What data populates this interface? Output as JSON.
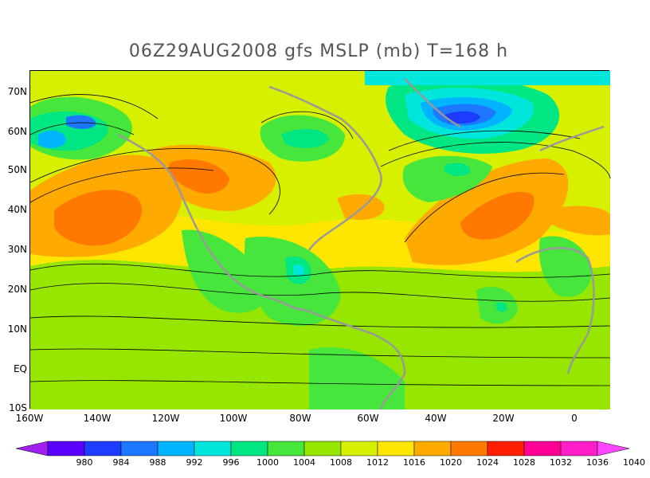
{
  "title": "06Z29AUG2008 gfs MSLP (mb) T=168 h",
  "map": {
    "lon_range": [
      -160,
      10
    ],
    "lat_range": [
      -10,
      75
    ],
    "y_ticks": [
      "70N",
      "60N",
      "50N",
      "40N",
      "30N",
      "20N",
      "10N",
      "EQ",
      "10S"
    ],
    "x_ticks": [
      "160W",
      "140W",
      "120W",
      "100W",
      "80W",
      "60W",
      "40W",
      "20W",
      "0"
    ]
  },
  "colorbar": {
    "labels": [
      "980",
      "984",
      "988",
      "992",
      "996",
      "1000",
      "1004",
      "1008",
      "1012",
      "1016",
      "1020",
      "1024",
      "1028",
      "1032",
      "1036",
      "1040"
    ],
    "colors": [
      "#a020f0",
      "#5a00ff",
      "#1e3cff",
      "#1e78ff",
      "#00b4ff",
      "#00e6dc",
      "#00e682",
      "#46e63c",
      "#96e600",
      "#d7f000",
      "#ffe600",
      "#ffaa00",
      "#ff7800",
      "#ff1e00",
      "#ff0096",
      "#ff1ec8",
      "#ff46ff"
    ]
  }
}
